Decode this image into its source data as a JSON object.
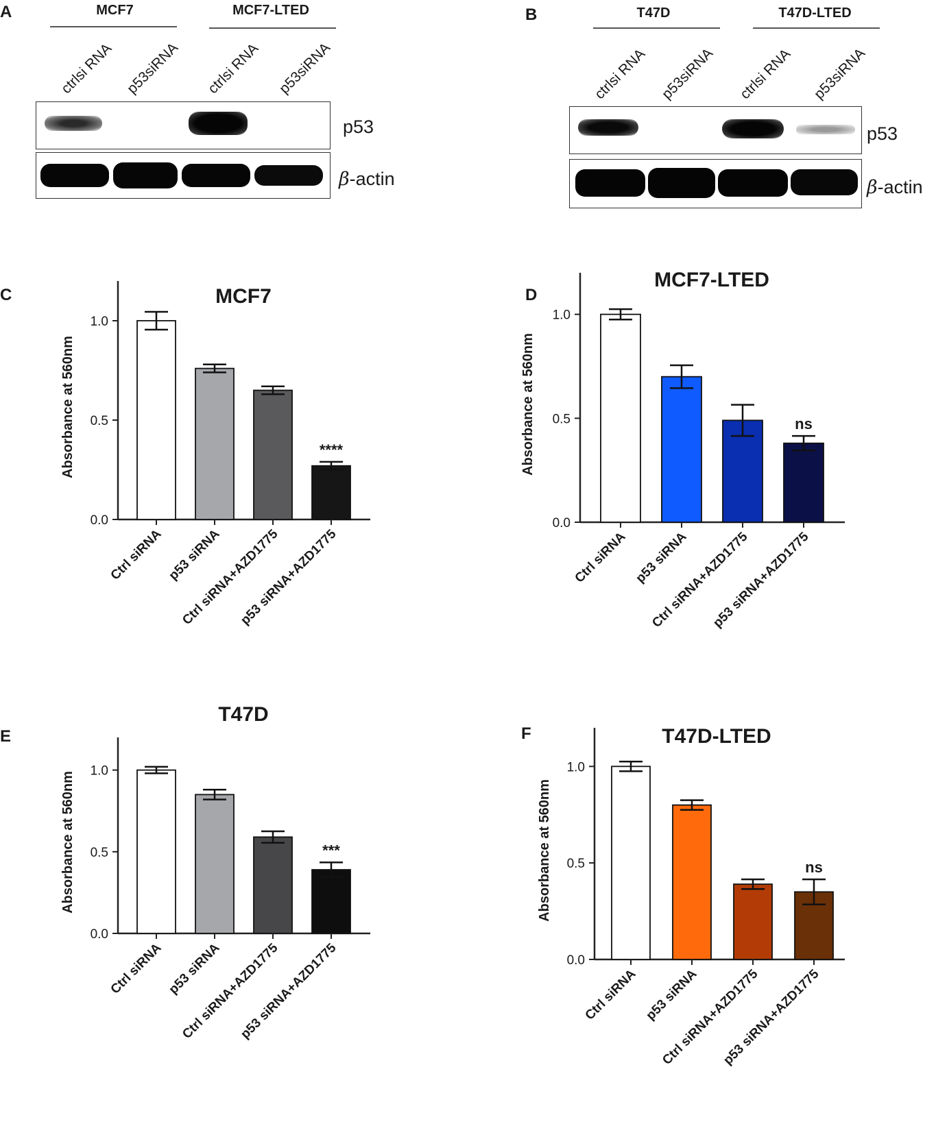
{
  "blots": [
    {
      "letter": "A",
      "groups": [
        "MCF7",
        "MCF7-LTED"
      ],
      "lanes": [
        "ctrlsi RNA",
        "p53siRNA",
        "ctrlsi RNA",
        "p53siRNA"
      ],
      "proteins": [
        "p53",
        "-actin"
      ],
      "beta_symbol": "β"
    },
    {
      "letter": "B",
      "groups": [
        "T47D",
        "T47D-LTED"
      ],
      "lanes": [
        "ctrlsi RNA",
        "p53siRNA",
        "ctrlsi RNA",
        "p53siRNA"
      ],
      "proteins": [
        "p53",
        "-actin"
      ],
      "beta_symbol": "β"
    }
  ],
  "chart_data": [
    {
      "letter": "C",
      "type": "bar",
      "title": "MCF7",
      "ylabel": "Absorbance at 560nm",
      "categories": [
        "Ctrl siRNA",
        "p53 siRNA",
        "Ctrl siRNA+AZD1775",
        "p53 siRNA+AZD1775"
      ],
      "values": [
        1.0,
        0.76,
        0.65,
        0.27
      ],
      "errors": [
        0.045,
        0.02,
        0.02,
        0.02
      ],
      "colors": [
        "#ffffff",
        "#a6a7ab",
        "#5a5a5c",
        "#161616"
      ],
      "annotations": [
        "",
        "",
        "",
        "****"
      ],
      "ylim": [
        0,
        1.2
      ],
      "yticks": [
        "0.0",
        "0.5",
        "1.0"
      ]
    },
    {
      "letter": "D",
      "type": "bar",
      "title": "MCF7-LTED",
      "ylabel": "Absorbance at 560nm",
      "categories": [
        "Ctrl siRNA",
        "p53 siRNA",
        "Ctrl siRNA+AZD1775",
        "p53 siRNA+AZD1775"
      ],
      "values": [
        1.0,
        0.7,
        0.49,
        0.38
      ],
      "errors": [
        0.025,
        0.055,
        0.075,
        0.035
      ],
      "colors": [
        "#ffffff",
        "#0f5bff",
        "#0a2fb0",
        "#0b1147"
      ],
      "annotations": [
        "",
        "",
        "",
        "ns"
      ],
      "ylim": [
        0,
        1.2
      ],
      "yticks": [
        "0.0",
        "0.5",
        "1.0"
      ]
    },
    {
      "letter": "E",
      "type": "bar",
      "title": "T47D",
      "ylabel": "Absorbance at 560nm",
      "categories": [
        "Ctrl siRNA",
        "p53 siRNA",
        "Ctrl siRNA+AZD1775",
        "p53 siRNA+AZD1775"
      ],
      "values": [
        1.0,
        0.85,
        0.59,
        0.39
      ],
      "errors": [
        0.02,
        0.03,
        0.035,
        0.045
      ],
      "colors": [
        "#ffffff",
        "#a6a7ab",
        "#474749",
        "#0e0e0e"
      ],
      "annotations": [
        "",
        "",
        "",
        "***"
      ],
      "ylim": [
        0,
        1.2
      ],
      "yticks": [
        "0.0",
        "0.5",
        "1.0"
      ]
    },
    {
      "letter": "F",
      "type": "bar",
      "title": "T47D-LTED",
      "ylabel": "Absorbance at 560nm",
      "categories": [
        "Ctrl siRNA",
        "p53 siRNA",
        "Ctrl siRNA+AZD1775",
        "p53 siRNA+AZD1775"
      ],
      "values": [
        1.0,
        0.8,
        0.39,
        0.35
      ],
      "errors": [
        0.025,
        0.025,
        0.025,
        0.065
      ],
      "colors": [
        "#ffffff",
        "#ff6a0c",
        "#b33c06",
        "#6a3007"
      ],
      "annotations": [
        "",
        "",
        "",
        "ns"
      ],
      "ylim": [
        0,
        1.2
      ],
      "yticks": [
        "0.0",
        "0.5",
        "1.0"
      ]
    }
  ]
}
